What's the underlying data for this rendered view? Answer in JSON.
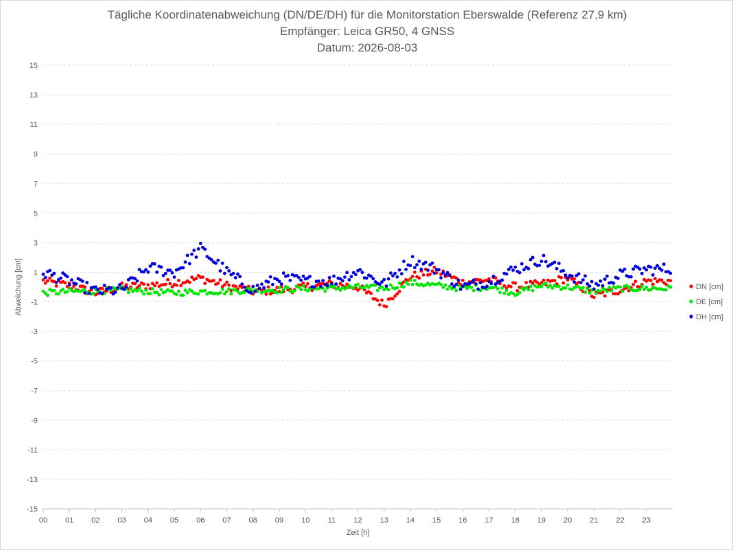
{
  "header": {
    "title": "Tägliche Koordinatenabweichung (DN/DE/DH) für die Monitorstation Eberswalde (Referenz 27,9 km)",
    "subtitle": "Empfänger: Leica GR50, 4 GNSS",
    "date": "Datum: 2026-08-03"
  },
  "chart_data": {
    "type": "scatter",
    "title": "Tägliche Koordinatenabweichung (DN/DE/DH) für die Monitorstation Eberswalde (Referenz 27,9 km)",
    "subtitle": "Empfänger: Leica GR50, 4 GNSS",
    "date": "Datum: 2026-08-03",
    "xlabel": "Zeit [h]",
    "ylabel": "Abweichung [cm]",
    "xlim": [
      0,
      24
    ],
    "ylim": [
      -15,
      15
    ],
    "x_ticks": [
      "00",
      "01",
      "02",
      "03",
      "04",
      "05",
      "06",
      "07",
      "08",
      "09",
      "10",
      "11",
      "12",
      "13",
      "14",
      "15",
      "16",
      "17",
      "18",
      "19",
      "20",
      "21",
      "22",
      "23"
    ],
    "y_ticks": [
      "-15",
      "-13",
      "-11",
      "-9",
      "-7",
      "-5",
      "-3",
      "-1",
      "1",
      "3",
      "5",
      "7",
      "9",
      "11",
      "13",
      "15"
    ],
    "grid": true,
    "legend_position": "right",
    "points_per_hour": 12,
    "series": [
      {
        "name": "DN [cm]",
        "color": "#ff0000",
        "profile_hourly": [
          0.4,
          0.1,
          -0.4,
          0.0,
          0.1,
          0.3,
          0.6,
          0.1,
          -0.3,
          -0.2,
          0.0,
          0.2,
          0.0,
          -1.2,
          0.7,
          1.1,
          0.3,
          0.5,
          0.0,
          0.2,
          0.6,
          -0.6,
          -0.2,
          0.4
        ]
      },
      {
        "name": "DE [cm]",
        "color": "#00e600",
        "profile_hourly": [
          -0.4,
          -0.3,
          -0.3,
          -0.2,
          -0.3,
          -0.4,
          -0.3,
          -0.3,
          -0.2,
          -0.2,
          -0.1,
          -0.1,
          0.0,
          -0.1,
          0.3,
          0.1,
          -0.1,
          0.0,
          -0.4,
          0.1,
          0.0,
          -0.3,
          -0.1,
          -0.1
        ]
      },
      {
        "name": "DH [cm]",
        "color": "#0000dd",
        "profile_hourly": [
          1.0,
          0.4,
          -0.3,
          -0.2,
          1.3,
          1.0,
          2.6,
          1.0,
          -0.2,
          0.6,
          0.4,
          0.4,
          1.1,
          0.2,
          1.8,
          1.2,
          0.0,
          0.4,
          1.2,
          1.9,
          0.9,
          0.1,
          0.8,
          1.2
        ]
      }
    ]
  }
}
